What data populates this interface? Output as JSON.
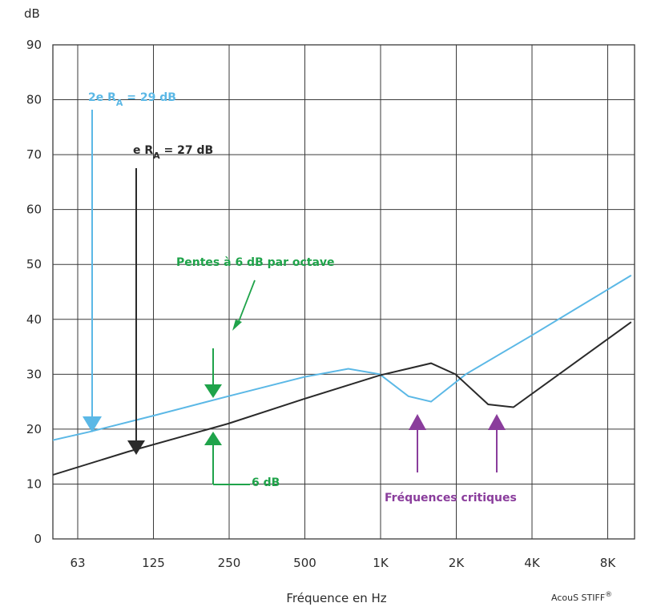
{
  "chart_data": {
    "type": "line",
    "ylabel": "dB",
    "xlabel": "Fréquence en Hz",
    "ylim": [
      0,
      90
    ],
    "y_ticks": [
      "0",
      "10",
      "20",
      "30",
      "40",
      "50",
      "60",
      "70",
      "80",
      "90"
    ],
    "x_scale": "log2 (octaves)",
    "x_ticks": [
      "63",
      "125",
      "250",
      "500",
      "1K",
      "2K",
      "4K",
      "8K"
    ],
    "grid": true,
    "colors": {
      "blue": "#5bb8e6",
      "black": "#2a2a2a",
      "green": "#1fa34a",
      "purple": "#8a3d9c",
      "grid": "#3a3a3a"
    },
    "series": [
      {
        "name": "2e",
        "color": "#5bb8e6",
        "points": [
          [
            45,
            17.5
          ],
          [
            70,
            19.5
          ],
          [
            125,
            22.4
          ],
          [
            250,
            26
          ],
          [
            500,
            29.5
          ],
          [
            750,
            31
          ],
          [
            1000,
            30
          ],
          [
            1300,
            26
          ],
          [
            1600,
            25
          ],
          [
            2200,
            30
          ],
          [
            4000,
            37
          ],
          [
            10000,
            48
          ]
        ]
      },
      {
        "name": "e",
        "color": "#2a2a2a",
        "points": [
          [
            45,
            11
          ],
          [
            100,
            15.9
          ],
          [
            250,
            21
          ],
          [
            500,
            25.5
          ],
          [
            1000,
            29.8
          ],
          [
            1600,
            32
          ],
          [
            2000,
            30
          ],
          [
            2700,
            24.5
          ],
          [
            3400,
            24
          ],
          [
            10000,
            39.5
          ]
        ]
      }
    ],
    "annotations": {
      "ra_blue": {
        "prefix": "2e R",
        "sub": "A",
        "suffix": " = 29 dB"
      },
      "ra_black": {
        "prefix": "e R",
        "sub": "A",
        "suffix": " = 27 dB"
      },
      "slopes": "Pentes à 6 dB par octave",
      "six_db": "6 dB",
      "critical": "Fréquences critiques",
      "brand": "AcouS STIFF",
      "brand_mark": "®"
    }
  }
}
